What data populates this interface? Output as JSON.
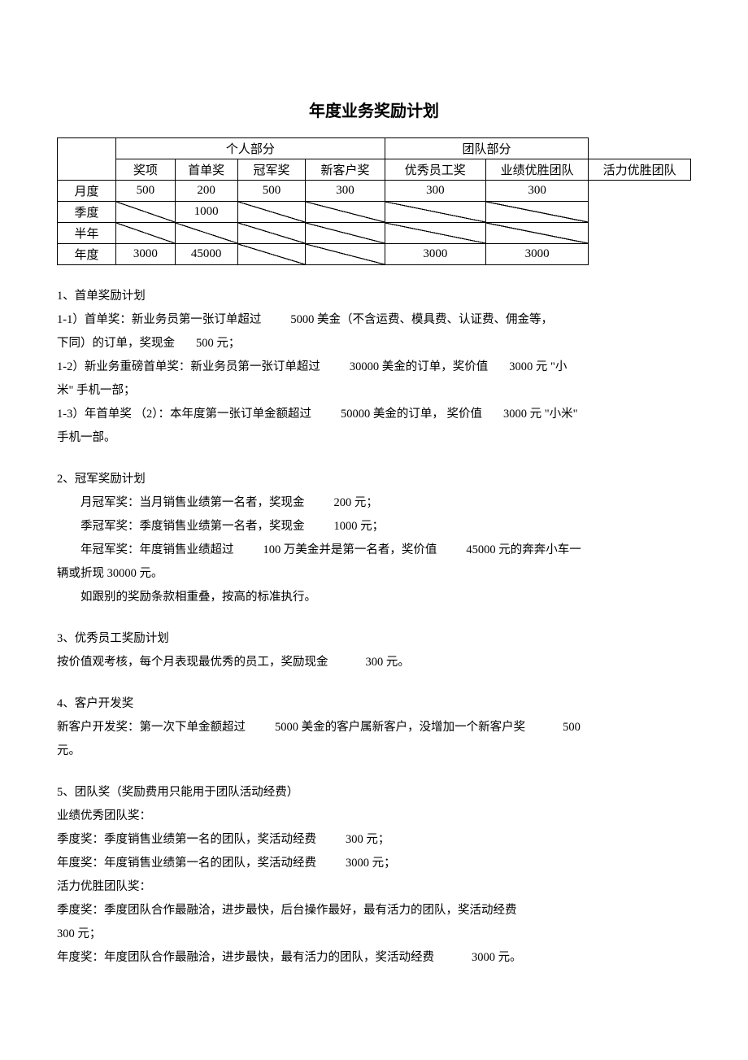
{
  "title": "年度业务奖励计划",
  "table": {
    "header_group_personal": "个人部分",
    "header_group_team": "团队部分",
    "col_award": "奖项",
    "col_first": "首单奖",
    "col_champ": "冠军奖",
    "col_newcust": "新客户奖",
    "col_staff": "优秀员工奖",
    "col_perf_team": "业绩优胜团队",
    "col_vit_team": "活力优胜团队",
    "row_month": "月度",
    "row_quarter": "季度",
    "row_half": "半年",
    "row_year": "年度",
    "month": {
      "first": "500",
      "champ": "200",
      "newcust": "500",
      "staff": "300",
      "perf": "300",
      "vit": "300"
    },
    "quarter": {
      "champ": "1000"
    },
    "year": {
      "first": "3000",
      "champ": "45000",
      "perf": "3000",
      "vit": "3000"
    }
  },
  "s1": {
    "h": "1、首单奖励计划",
    "p1a": "1-1）首单奖：新业务员第一张订单超过",
    "p1b": "5000 美金（不含运费、模具费、认证费、佣金等，",
    "p1c": "下同）的订单，奖现金",
    "p1d": "500 元；",
    "p2a": "1-2）新业务重磅首单奖：新业务员第一张订单超过",
    "p2b": "30000 美金的订单，奖价值",
    "p2c": "3000 元 \"小",
    "p2d": "米\" 手机一部；",
    "p3a": "1-3）年首单奖 （2）：本年度第一张订单金额超过",
    "p3b": "50000  美金的订单，  奖价值",
    "p3c": "3000 元 \"小米\"",
    "p3d": "手机一部。"
  },
  "s2": {
    "h": "2、冠军奖励计划",
    "p1a": "月冠军奖：当月销售业绩第一名者，奖现金",
    "p1b": "200 元；",
    "p2a": "季冠军奖：季度销售业绩第一名者，奖现金",
    "p2b": "1000 元；",
    "p3a": "年冠军奖：年度销售业绩超过",
    "p3b": "100 万美金并是第一名者，奖价值",
    "p3c": "45000 元的奔奔小车一",
    "p4": "辆或折现 30000 元。",
    "p5": "如跟别的奖励条款相重叠，按高的标准执行。"
  },
  "s3": {
    "h": "3、优秀员工奖励计划",
    "p1a": "按价值观考核，每个月表现最优秀的员工，奖励现金",
    "p1b": "300 元。"
  },
  "s4": {
    "h": "4、客户开发奖",
    "p1a": "新客户开发奖：第一次下单金额超过",
    "p1b": "5000  美金的客户属新客户，没增加一个新客户奖",
    "p1c": "500",
    "p2": "元。"
  },
  "s5": {
    "h": "5、团队奖（奖励费用只能用于团队活动经费）",
    "p1": "业绩优秀团队奖：",
    "p2a": "季度奖：季度销售业绩第一名的团队，奖活动经费",
    "p2b": "300 元；",
    "p3a": "年度奖：年度销售业绩第一名的团队，奖活动经费",
    "p3b": "3000 元；",
    "p4": "活力优胜团队奖：",
    "p5": "季度奖：季度团队合作最融洽，进步最快，后台操作最好，最有活力的团队，奖活动经费",
    "p6": "300 元；",
    "p7a": "年度奖：年度团队合作最融洽，进步最快，最有活力的团队，奖活动经费",
    "p7b": "3000 元。"
  }
}
